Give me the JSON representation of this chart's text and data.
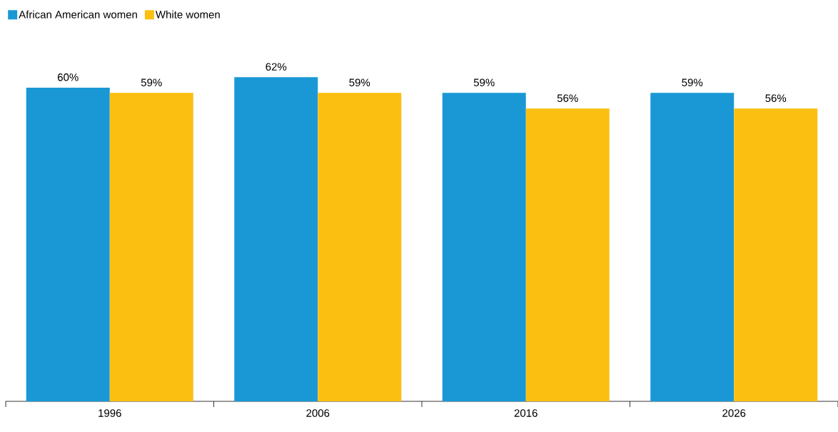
{
  "chart_data": {
    "type": "bar",
    "categories": [
      "1996",
      "2006",
      "2016",
      "2026"
    ],
    "series": [
      {
        "name": "African American women",
        "color": "#1a98d5",
        "values": [
          60,
          62,
          59,
          59
        ],
        "value_labels": [
          "60%",
          "62%",
          "59%",
          "59%"
        ]
      },
      {
        "name": "White women",
        "color": "#fbbf12",
        "values": [
          59,
          59,
          56,
          56
        ],
        "value_labels": [
          "59%",
          "59%",
          "56%",
          "56%"
        ]
      }
    ],
    "legend": "top left",
    "grid": false
  }
}
